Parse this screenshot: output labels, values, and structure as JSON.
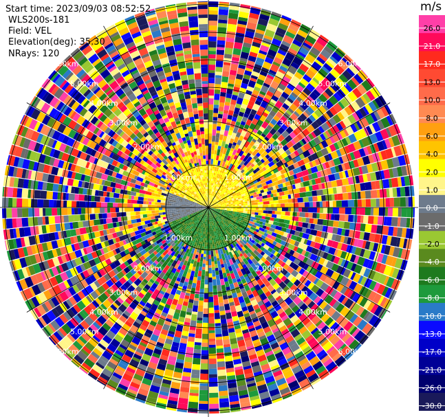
{
  "header": {
    "start_time": "Start time: 2023/09/03 08:52:52",
    "instrument": "WLS200s-181",
    "field": "Field: VEL",
    "elevation": "Elevation(deg): 35.30",
    "nrays": "NRays: 120"
  },
  "colorbar": {
    "units": "m/s",
    "entries": [
      {
        "label": "26.0",
        "color": "#ff3fa8"
      },
      {
        "label": "21.0",
        "color": "#ff0a5a"
      },
      {
        "label": "17.0",
        "color": "#ff2a1e"
      },
      {
        "label": "13.0",
        "color": "#ff4a32"
      },
      {
        "label": "10.0",
        "color": "#ff6b4a"
      },
      {
        "label": "8.0",
        "color": "#ff8a52"
      },
      {
        "label": "6.0",
        "color": "#ffa010"
      },
      {
        "label": "4.0",
        "color": "#ffc400"
      },
      {
        "label": "2.0",
        "color": "#ffff00"
      },
      {
        "label": "1.0",
        "color": "#fff58a"
      },
      {
        "label": "0.0",
        "color": "#6d7b8c"
      },
      {
        "label": "-1.0",
        "color": "#6b6b6b"
      },
      {
        "label": "-2.0",
        "color": "#9ac832"
      },
      {
        "label": "-4.0",
        "color": "#5a8a1e"
      },
      {
        "label": "-6.0",
        "color": "#1e7a1e"
      },
      {
        "label": "-8.0",
        "color": "#1e9a3c"
      },
      {
        "label": "-10.0",
        "color": "#2a7ac8"
      },
      {
        "label": "-13.0",
        "color": "#0a0aff"
      },
      {
        "label": "-17.0",
        "color": "#0000c8"
      },
      {
        "label": "-21.0",
        "color": "#000096"
      },
      {
        "label": "-26.0",
        "color": "#00006e"
      },
      {
        "label": "-30.0",
        "color": "#1a1a5a"
      }
    ]
  },
  "chart_data": {
    "type": "heatmap",
    "subtype": "ppi",
    "field": "VEL",
    "units": "m/s",
    "elevation_deg": 35.3,
    "nrays": 120,
    "range_ring_labels": [
      "1.00km",
      "2.00km",
      "3.00km",
      "4.00km",
      "5.00km",
      "6.00km"
    ],
    "cmap_ticks": [
      26.0,
      21.0,
      17.0,
      13.0,
      10.0,
      8.0,
      6.0,
      4.0,
      2.0,
      1.0,
      0.0,
      -1.0,
      -2.0,
      -4.0,
      -6.0,
      -8.0,
      -10.0,
      -13.0,
      -17.0,
      -21.0,
      -26.0,
      -30.0
    ],
    "inner_region": {
      "description": "coherent velocities within ~1 km",
      "toward_radar_sector": "south-west to south-east",
      "positive_values": "north-east half (about 1 to 4 m/s)",
      "negative_values": "south half (about -2 to -10 m/s)"
    },
    "outer_region": "noise: random velocities across the full colour scale beyond ~1.5 km"
  }
}
